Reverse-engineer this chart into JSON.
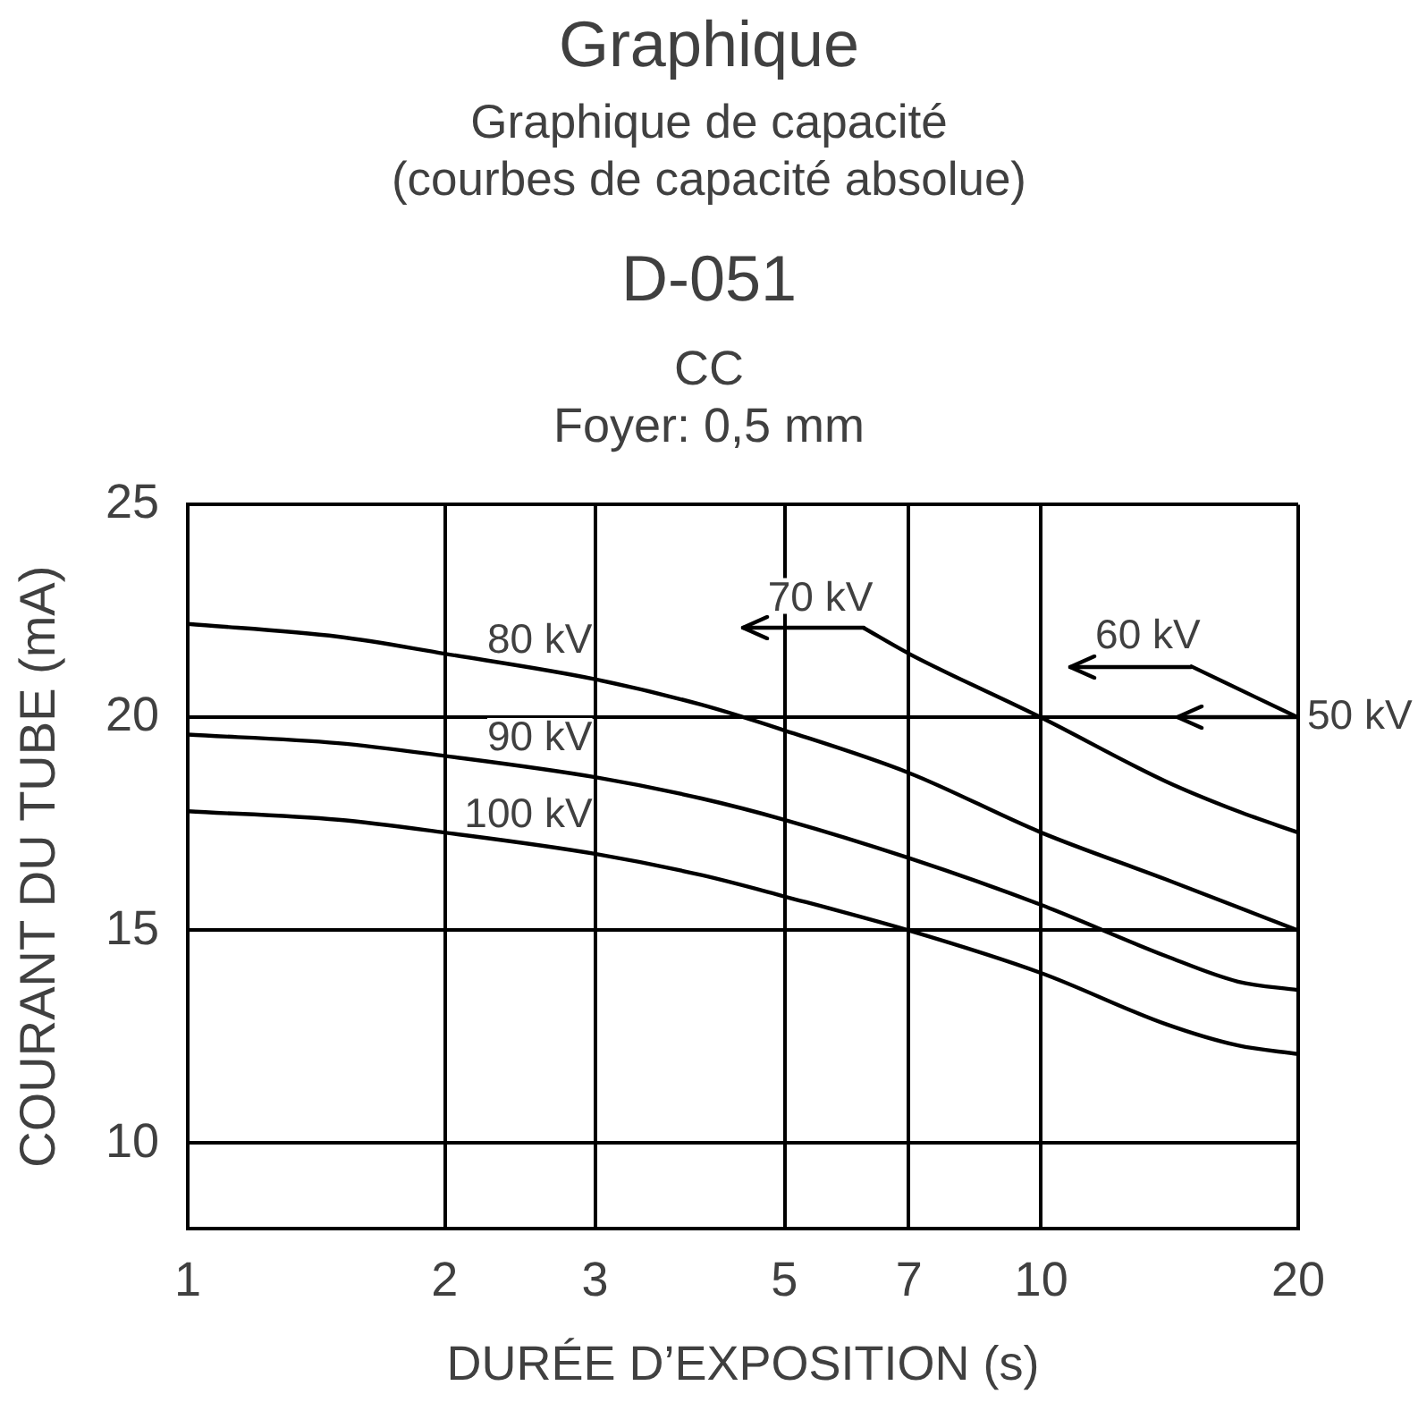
{
  "chart_data": {
    "type": "line",
    "title": "Graphique",
    "subtitle": "Graphique de capacité\n(courbes de capacité absolue)",
    "annotations": [
      "D-051",
      "CC",
      "Foyer: 0,5 mm",
      {
        "text": "70 kV",
        "x": 6.2,
        "y": 22.1
      },
      {
        "text": "60 kV",
        "x": 15,
        "y": 21.2
      },
      {
        "text": "50 kV",
        "x": 20,
        "y": 20
      }
    ],
    "xlabel": "DURÉE D’EXPOSITION (s)",
    "ylabel": "COURANT DU TUBE (mA)",
    "log": "x",
    "xlim": [
      1,
      20
    ],
    "xticks": [
      1,
      2,
      3,
      5,
      7,
      10,
      20
    ],
    "ylim": [
      8,
      25
    ],
    "yticks": [
      10,
      15,
      20,
      25
    ],
    "grid": true,
    "series": [
      {
        "color": "#000000",
        "x": [
          15,
          20
        ],
        "values": [
          21.2,
          20.0
        ]
      },
      {
        "color": "#000000",
        "x": [
          6.2,
          7,
          10,
          14,
          17,
          20
        ],
        "values": [
          22.1,
          21.5,
          20.0,
          18.5,
          17.8,
          17.3
        ]
      },
      {
        "name": "80 kV",
        "color": "#000000",
        "x": [
          1,
          1.5,
          2,
          3,
          4,
          5,
          7,
          10,
          14,
          20
        ],
        "values": [
          22.2,
          21.9,
          21.5,
          20.9,
          20.3,
          19.7,
          18.7,
          17.3,
          16.2,
          15.0
        ]
      },
      {
        "name": "90 kV",
        "color": "#000000",
        "x": [
          1,
          1.5,
          2,
          3,
          4,
          5,
          7,
          10,
          14,
          17,
          20
        ],
        "values": [
          19.6,
          19.4,
          19.1,
          18.6,
          18.1,
          17.6,
          16.7,
          15.6,
          14.4,
          13.8,
          13.6
        ]
      },
      {
        "name": "100 kV",
        "color": "#000000",
        "x": [
          1,
          1.5,
          2,
          3,
          4,
          5,
          7,
          10,
          14,
          17,
          20
        ],
        "values": [
          17.8,
          17.6,
          17.3,
          16.8,
          16.3,
          15.8,
          15.0,
          14.0,
          12.8,
          12.3,
          12.1
        ]
      }
    ]
  }
}
